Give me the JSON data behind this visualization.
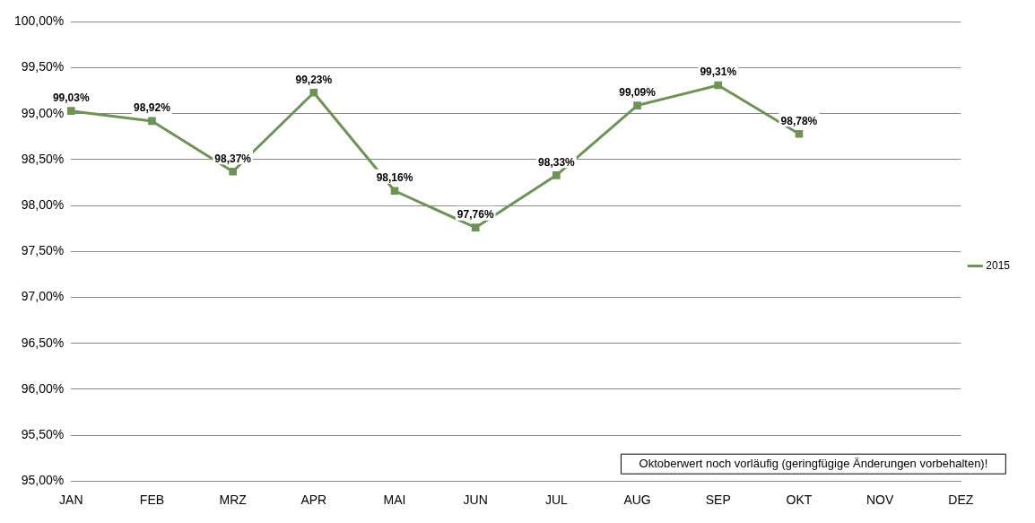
{
  "chart_data": {
    "type": "line",
    "categories": [
      "JAN",
      "FEB",
      "MRZ",
      "APR",
      "MAI",
      "JUN",
      "JUL",
      "AUG",
      "SEP",
      "OKT",
      "NOV",
      "DEZ"
    ],
    "series": [
      {
        "name": "2015",
        "color": "#6f9256",
        "values": [
          99.03,
          98.92,
          98.37,
          99.23,
          98.16,
          97.76,
          98.33,
          99.09,
          99.31,
          98.78,
          null,
          null
        ],
        "value_labels": [
          "99,03%",
          "98,92%",
          "98,37%",
          "99,23%",
          "98,16%",
          "97,76%",
          "98,33%",
          "99,09%",
          "99,31%",
          "98,78%",
          null,
          null
        ]
      }
    ],
    "ylim": [
      95,
      100
    ],
    "yticks": [
      {
        "value": 95,
        "label": "95,00%"
      },
      {
        "value": 95.5,
        "label": "95,50%"
      },
      {
        "value": 96,
        "label": "96,00%"
      },
      {
        "value": 96.5,
        "label": "96,50%"
      },
      {
        "value": 97,
        "label": "97,00%"
      },
      {
        "value": 97.5,
        "label": "97,50%"
      },
      {
        "value": 98,
        "label": "98,00%"
      },
      {
        "value": 98.5,
        "label": "98,50%"
      },
      {
        "value": 99,
        "label": "99,00%"
      },
      {
        "value": 99.5,
        "label": "99,50%"
      },
      {
        "value": 100,
        "label": "100,00%"
      }
    ],
    "grid": "y",
    "legend": "right",
    "marker": "square",
    "line_style": "solid",
    "annotations": [
      "Oktoberwert noch vorläufig (geringfügige Änderungen vorbehalten)!"
    ]
  }
}
